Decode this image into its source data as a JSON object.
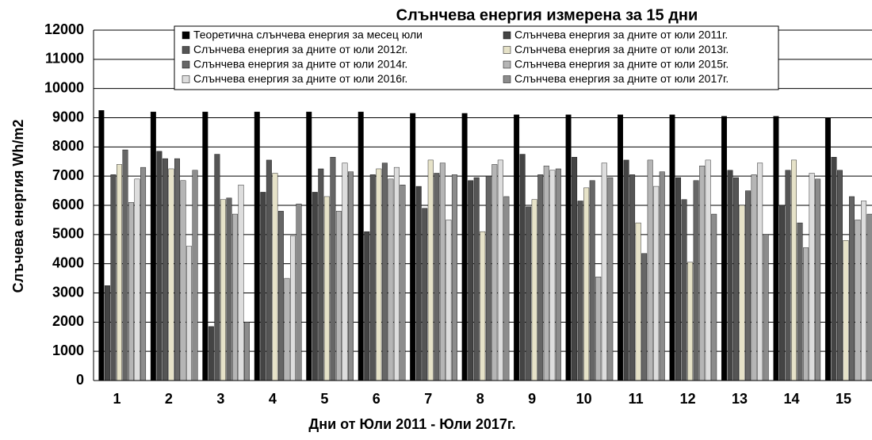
{
  "chart_data": {
    "type": "bar",
    "title": "Слънчева енергия измерена за 15 дни",
    "x_label": "Дни от Юли 2011 - Юли 2017г.",
    "y_label": "Слъчева енергия  Wh/m2",
    "categories": [
      "1",
      "2",
      "3",
      "4",
      "5",
      "6",
      "7",
      "8",
      "9",
      "10",
      "11",
      "12",
      "13",
      "14",
      "15"
    ],
    "series": [
      {
        "name": "Теоретична слънчева енергия за месец юли",
        "color": "#000000",
        "values": [
          9250,
          9200,
          9200,
          9200,
          9200,
          9200,
          9150,
          9150,
          9100,
          9100,
          9100,
          9100,
          9050,
          9050,
          9000
        ]
      },
      {
        "name": "Слънчева енергия за дните от юли 2011г.",
        "color": "#444444",
        "values": [
          3250,
          7850,
          1850,
          6450,
          6450,
          5100,
          6650,
          6850,
          7750,
          7650,
          7550,
          6950,
          7200,
          6000,
          7650
        ]
      },
      {
        "name": "Слънчева енергия за дните от юли 2012г.",
        "color": "#555555",
        "values": [
          7050,
          7600,
          7750,
          7550,
          7250,
          7050,
          5900,
          6950,
          5950,
          6150,
          7050,
          6200,
          6950,
          7200,
          7200
        ]
      },
      {
        "name": "Слънчева енергия за дните от юли 2013г.",
        "color": "#e6e2c8",
        "values": [
          7400,
          7250,
          6200,
          7100,
          6300,
          7250,
          7550,
          5100,
          6200,
          6600,
          5400,
          4050,
          6000,
          7550,
          4800
        ]
      },
      {
        "name": "Слънчева енергия за дните от юли 2014г.",
        "color": "#666666",
        "values": [
          7900,
          7600,
          6250,
          5800,
          7650,
          7450,
          7100,
          7000,
          7050,
          6850,
          4350,
          6850,
          6500,
          5400,
          6300
        ]
      },
      {
        "name": "Слънчева енергия за дните от юли 2015г.",
        "color": "#b5b5b5",
        "values": [
          6100,
          6850,
          5700,
          3500,
          5800,
          6900,
          7450,
          7400,
          7350,
          3550,
          7550,
          7350,
          7050,
          4550,
          5500
        ]
      },
      {
        "name": "Слънчева енергия за дните от юли 2016г.",
        "color": "#dddddd",
        "values": [
          6900,
          4600,
          6700,
          4950,
          7450,
          7300,
          5500,
          7550,
          7200,
          7450,
          6650,
          7550,
          7450,
          7100,
          6150
        ]
      },
      {
        "name": "Слънчева енергия за дните от юли 2017г.",
        "color": "#8c8c8c",
        "values": [
          7300,
          7200,
          2000,
          6050,
          7150,
          6700,
          7050,
          6300,
          7250,
          6950,
          7150,
          5700,
          5000,
          6900,
          5700
        ]
      }
    ],
    "ylim": [
      0,
      12000
    ],
    "yticks": [
      0,
      1000,
      2000,
      3000,
      4000,
      5000,
      6000,
      7000,
      8000,
      9000,
      10000,
      11000,
      12000
    ],
    "grid": true
  }
}
